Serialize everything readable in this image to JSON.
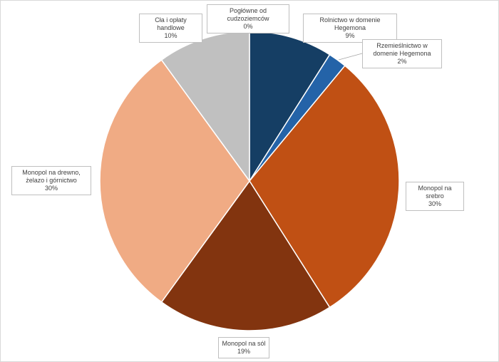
{
  "chart_data": {
    "type": "pie",
    "title": "",
    "start_angle_deg": 0,
    "direction": "clockwise",
    "slices": [
      {
        "label": "Pogłówne od cudzoziemców",
        "value": 0,
        "pct_label": "0%",
        "color": "#4f81bd"
      },
      {
        "label": "Rolnictwo w domenie Hegemona",
        "value": 9,
        "pct_label": "9%",
        "color": "#153e64"
      },
      {
        "label": "Rzemieślnictwo w domenie Hegemona",
        "value": 2,
        "pct_label": "2%",
        "color": "#2463a8"
      },
      {
        "label": "Monopol na srebro",
        "value": 30,
        "pct_label": "30%",
        "color": "#c05014"
      },
      {
        "label": "Monopol na sól",
        "value": 19,
        "pct_label": "19%",
        "color": "#82340f"
      },
      {
        "label": "Monopol na drewno, żelazo i górnictwo",
        "value": 30,
        "pct_label": "30%",
        "color": "#f0ab84"
      },
      {
        "label": "Cła i opłaty handlowe",
        "value": 10,
        "pct_label": "10%",
        "color": "#c0c0c0"
      }
    ]
  }
}
